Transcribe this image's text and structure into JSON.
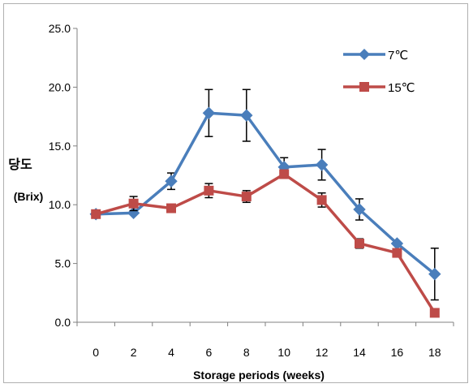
{
  "chart_data": {
    "type": "line",
    "categories": [
      "0",
      "2",
      "4",
      "6",
      "8",
      "10",
      "12",
      "14",
      "16",
      "18"
    ],
    "x": [
      0,
      2,
      4,
      6,
      8,
      10,
      12,
      14,
      16,
      18
    ],
    "xlabel": "Storage periods (weeks)",
    "ylabel_line1": "당도",
    "ylabel_line2": "(Brix)",
    "ylim": [
      0,
      25
    ],
    "yticks": [
      "0.0",
      "5.0",
      "10.0",
      "15.0",
      "20.0",
      "25.0"
    ],
    "grid": false,
    "legend_position": "top-right",
    "series": [
      {
        "name": "7℃",
        "color": "#4a7ebb",
        "marker": "diamond",
        "values": [
          9.2,
          9.3,
          12.0,
          17.8,
          17.6,
          13.2,
          13.4,
          9.6,
          6.7,
          4.1
        ],
        "errors": [
          null,
          null,
          0.7,
          2.0,
          2.2,
          0.8,
          1.3,
          0.9,
          null,
          2.2
        ]
      },
      {
        "name": "15℃",
        "color": "#be4b48",
        "marker": "square",
        "values": [
          9.2,
          10.1,
          9.7,
          11.2,
          10.7,
          12.6,
          10.4,
          6.7,
          5.9,
          0.8
        ],
        "errors": [
          null,
          0.6,
          null,
          0.6,
          0.5,
          null,
          0.6,
          0.4,
          null,
          null
        ]
      }
    ]
  }
}
